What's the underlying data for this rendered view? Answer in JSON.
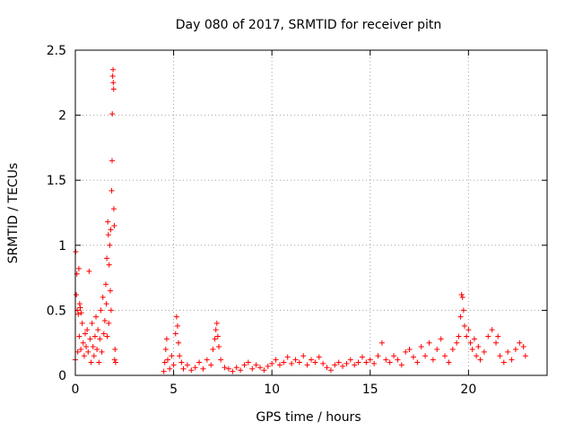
{
  "chart_data": {
    "type": "scatter",
    "title": "Day 080 of 2017, SRMTID for receiver pitn",
    "xlabel": "GPS time / hours",
    "ylabel": "SRMTID / TECUs",
    "xlim": [
      0,
      24
    ],
    "ylim": [
      0,
      2.5
    ],
    "xticks": [
      0,
      5,
      10,
      15,
      20
    ],
    "xtick_labels": [
      "0",
      "5",
      "10",
      "15",
      "20"
    ],
    "yticks": [
      0,
      0.5,
      1,
      1.5,
      2,
      2.5
    ],
    "ytick_labels": [
      "0",
      "0.5",
      "1",
      "1.5",
      "2",
      "2.5"
    ],
    "grid": true,
    "marker": "plus",
    "color": "#ff0000",
    "series": [
      {
        "name": "SRMTID",
        "points": [
          [
            0.0,
            0.12
          ],
          [
            0.02,
            0.95
          ],
          [
            0.05,
            0.62
          ],
          [
            0.08,
            0.78
          ],
          [
            0.1,
            0.5
          ],
          [
            0.12,
            0.18
          ],
          [
            0.15,
            0.47
          ],
          [
            0.18,
            0.82
          ],
          [
            0.2,
            0.3
          ],
          [
            0.22,
            0.55
          ],
          [
            0.25,
            0.52
          ],
          [
            0.28,
            0.2
          ],
          [
            0.3,
            0.48
          ],
          [
            0.35,
            0.4
          ],
          [
            0.4,
            0.25
          ],
          [
            0.45,
            0.15
          ],
          [
            0.5,
            0.32
          ],
          [
            0.55,
            0.22
          ],
          [
            0.6,
            0.35
          ],
          [
            0.65,
            0.18
          ],
          [
            0.7,
            0.8
          ],
          [
            0.75,
            0.28
          ],
          [
            0.8,
            0.1
          ],
          [
            0.85,
            0.4
          ],
          [
            0.9,
            0.22
          ],
          [
            0.95,
            0.15
          ],
          [
            1.0,
            0.3
          ],
          [
            1.05,
            0.45
          ],
          [
            1.1,
            0.2
          ],
          [
            1.15,
            0.35
          ],
          [
            1.2,
            0.1
          ],
          [
            1.25,
            0.28
          ],
          [
            1.3,
            0.5
          ],
          [
            1.35,
            0.18
          ],
          [
            1.4,
            0.6
          ],
          [
            1.45,
            0.32
          ],
          [
            1.5,
            0.42
          ],
          [
            1.55,
            0.7
          ],
          [
            1.58,
            0.55
          ],
          [
            1.6,
            0.9
          ],
          [
            1.62,
            0.3
          ],
          [
            1.65,
            1.18
          ],
          [
            1.68,
            1.08
          ],
          [
            1.7,
            0.4
          ],
          [
            1.72,
            0.85
          ],
          [
            1.75,
            1.0
          ],
          [
            1.78,
            0.65
          ],
          [
            1.8,
            1.12
          ],
          [
            1.82,
            0.5
          ],
          [
            1.85,
            1.42
          ],
          [
            1.87,
            1.65
          ],
          [
            1.88,
            2.01
          ],
          [
            1.9,
            2.3
          ],
          [
            1.92,
            2.35
          ],
          [
            1.93,
            2.25
          ],
          [
            1.95,
            2.2
          ],
          [
            1.96,
            1.28
          ],
          [
            1.98,
            1.15
          ],
          [
            2.0,
            0.12
          ],
          [
            2.02,
            0.2
          ],
          [
            2.05,
            0.1
          ],
          [
            4.5,
            0.03
          ],
          [
            4.55,
            0.1
          ],
          [
            4.6,
            0.2
          ],
          [
            4.65,
            0.28
          ],
          [
            4.7,
            0.12
          ],
          [
            4.8,
            0.05
          ],
          [
            4.9,
            0.15
          ],
          [
            5.0,
            0.08
          ],
          [
            5.1,
            0.32
          ],
          [
            5.15,
            0.45
          ],
          [
            5.2,
            0.38
          ],
          [
            5.25,
            0.25
          ],
          [
            5.3,
            0.15
          ],
          [
            5.4,
            0.1
          ],
          [
            5.5,
            0.05
          ],
          [
            5.7,
            0.08
          ],
          [
            5.9,
            0.04
          ],
          [
            6.1,
            0.06
          ],
          [
            6.3,
            0.1
          ],
          [
            6.5,
            0.05
          ],
          [
            6.7,
            0.12
          ],
          [
            6.9,
            0.08
          ],
          [
            7.0,
            0.2
          ],
          [
            7.1,
            0.28
          ],
          [
            7.15,
            0.35
          ],
          [
            7.2,
            0.4
          ],
          [
            7.25,
            0.3
          ],
          [
            7.3,
            0.22
          ],
          [
            7.4,
            0.12
          ],
          [
            7.6,
            0.06
          ],
          [
            7.8,
            0.05
          ],
          [
            8.0,
            0.03
          ],
          [
            8.2,
            0.06
          ],
          [
            8.4,
            0.04
          ],
          [
            8.6,
            0.08
          ],
          [
            8.8,
            0.1
          ],
          [
            9.0,
            0.05
          ],
          [
            9.2,
            0.08
          ],
          [
            9.4,
            0.06
          ],
          [
            9.6,
            0.04
          ],
          [
            9.8,
            0.07
          ],
          [
            10.0,
            0.09
          ],
          [
            10.2,
            0.12
          ],
          [
            10.4,
            0.08
          ],
          [
            10.6,
            0.1
          ],
          [
            10.8,
            0.14
          ],
          [
            11.0,
            0.09
          ],
          [
            11.2,
            0.12
          ],
          [
            11.4,
            0.1
          ],
          [
            11.6,
            0.15
          ],
          [
            11.8,
            0.08
          ],
          [
            12.0,
            0.12
          ],
          [
            12.2,
            0.1
          ],
          [
            12.4,
            0.14
          ],
          [
            12.6,
            0.09
          ],
          [
            12.8,
            0.06
          ],
          [
            13.0,
            0.04
          ],
          [
            13.2,
            0.08
          ],
          [
            13.4,
            0.1
          ],
          [
            13.6,
            0.07
          ],
          [
            13.8,
            0.09
          ],
          [
            14.0,
            0.12
          ],
          [
            14.2,
            0.08
          ],
          [
            14.4,
            0.1
          ],
          [
            14.6,
            0.14
          ],
          [
            14.8,
            0.1
          ],
          [
            15.0,
            0.12
          ],
          [
            15.2,
            0.09
          ],
          [
            15.4,
            0.15
          ],
          [
            15.6,
            0.25
          ],
          [
            15.8,
            0.12
          ],
          [
            16.0,
            0.1
          ],
          [
            16.2,
            0.15
          ],
          [
            16.4,
            0.12
          ],
          [
            16.6,
            0.08
          ],
          [
            16.8,
            0.18
          ],
          [
            17.0,
            0.2
          ],
          [
            17.2,
            0.14
          ],
          [
            17.4,
            0.1
          ],
          [
            17.6,
            0.22
          ],
          [
            17.8,
            0.15
          ],
          [
            18.0,
            0.25
          ],
          [
            18.2,
            0.12
          ],
          [
            18.4,
            0.2
          ],
          [
            18.6,
            0.28
          ],
          [
            18.8,
            0.15
          ],
          [
            19.0,
            0.1
          ],
          [
            19.2,
            0.2
          ],
          [
            19.4,
            0.25
          ],
          [
            19.5,
            0.3
          ],
          [
            19.6,
            0.45
          ],
          [
            19.65,
            0.62
          ],
          [
            19.7,
            0.6
          ],
          [
            19.75,
            0.5
          ],
          [
            19.8,
            0.38
          ],
          [
            19.9,
            0.3
          ],
          [
            20.0,
            0.35
          ],
          [
            20.1,
            0.25
          ],
          [
            20.2,
            0.2
          ],
          [
            20.3,
            0.28
          ],
          [
            20.4,
            0.15
          ],
          [
            20.5,
            0.22
          ],
          [
            20.6,
            0.12
          ],
          [
            20.8,
            0.18
          ],
          [
            21.0,
            0.3
          ],
          [
            21.2,
            0.35
          ],
          [
            21.4,
            0.25
          ],
          [
            21.5,
            0.3
          ],
          [
            21.6,
            0.15
          ],
          [
            21.8,
            0.1
          ],
          [
            22.0,
            0.18
          ],
          [
            22.2,
            0.12
          ],
          [
            22.4,
            0.2
          ],
          [
            22.6,
            0.25
          ],
          [
            22.8,
            0.22
          ],
          [
            22.9,
            0.15
          ]
        ]
      }
    ]
  }
}
